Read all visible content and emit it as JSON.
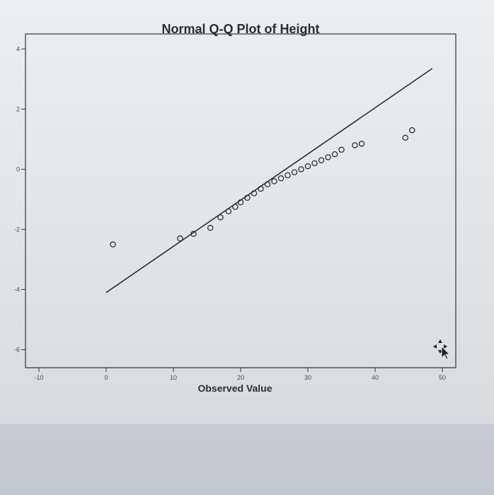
{
  "chart_data": {
    "type": "scatter",
    "title": "Normal Q-Q Plot of Height",
    "xlabel": "Observed Value",
    "ylabel": "",
    "xlim": [
      -12,
      52
    ],
    "ylim": [
      -6.6,
      4.5
    ],
    "x_ticks": [
      "-10",
      "0",
      "10",
      "20",
      "30",
      "40",
      "50"
    ],
    "y_ticks": [
      "4",
      "2",
      "0",
      "-2",
      "-4",
      "-6"
    ],
    "grid": false,
    "series": [
      {
        "points": [
          {
            "x": 1,
            "y": -2.5
          },
          {
            "x": 11,
            "y": -2.3
          },
          {
            "x": 13,
            "y": -2.15
          },
          {
            "x": 15.5,
            "y": -1.95
          },
          {
            "x": 17,
            "y": -1.6
          },
          {
            "x": 18.2,
            "y": -1.4
          },
          {
            "x": 19.2,
            "y": -1.25
          },
          {
            "x": 20,
            "y": -1.1
          },
          {
            "x": 21,
            "y": -0.95
          },
          {
            "x": 22,
            "y": -0.8
          },
          {
            "x": 23,
            "y": -0.65
          },
          {
            "x": 24,
            "y": -0.5
          },
          {
            "x": 25,
            "y": -0.4
          },
          {
            "x": 26,
            "y": -0.3
          },
          {
            "x": 27,
            "y": -0.2
          },
          {
            "x": 28,
            "y": -0.1
          },
          {
            "x": 29,
            "y": 0
          },
          {
            "x": 30,
            "y": 0.1
          },
          {
            "x": 31,
            "y": 0.2
          },
          {
            "x": 32,
            "y": 0.3
          },
          {
            "x": 33,
            "y": 0.4
          },
          {
            "x": 34,
            "y": 0.5
          },
          {
            "x": 35,
            "y": 0.65
          },
          {
            "x": 37,
            "y": 0.8
          },
          {
            "x": 38,
            "y": 0.85
          },
          {
            "x": 44.5,
            "y": 1.05
          },
          {
            "x": 45.5,
            "y": 1.3
          }
        ]
      }
    ],
    "reference_line": {
      "x": [
        0,
        48.5
      ],
      "y": [
        -4.1,
        3.35
      ]
    }
  }
}
